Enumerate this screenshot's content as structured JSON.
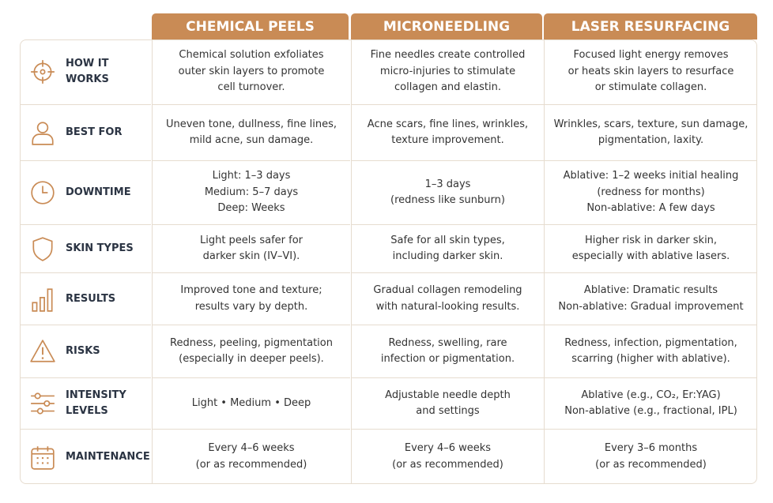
{
  "table": {
    "columns": [
      "CHEMICAL PEELS",
      "MICRONEEDLING",
      "LASER RESURFACING"
    ],
    "rows": [
      {
        "label": "HOW IT WORKS",
        "cells": [
          "Chemical solution exfoliates\nouter skin layers to promote\ncell turnover.",
          "Fine needles create controlled\nmicro-injuries to stimulate\ncollagen and elastin.",
          "Focused light energy removes\nor heats skin layers to resurface\nor stimulate collagen."
        ]
      },
      {
        "label": "BEST FOR",
        "cells": [
          "Uneven tone, dullness, fine lines,\nmild acne, sun damage.",
          "Acne scars, fine lines, wrinkles,\ntexture improvement.",
          "Wrinkles, scars, texture, sun damage,\npigmentation, laxity."
        ]
      },
      {
        "label": "DOWNTIME",
        "cells": [
          "Light: 1–3 days\nMedium: 5–7 days\nDeep: Weeks",
          "1–3 days\n(redness like sunburn)",
          "Ablative: 1–2 weeks initial healing\n(redness for months)\nNon-ablative: A few days"
        ]
      },
      {
        "label": "SKIN TYPES",
        "cells": [
          "Light peels safer for\ndarker skin (IV–VI).",
          "Safe for all skin types,\nincluding darker skin.",
          "Higher risk in darker skin,\nespecially with ablative lasers."
        ]
      },
      {
        "label": "RESULTS",
        "cells": [
          "Improved tone and texture;\nresults vary by depth.",
          "Gradual collagen remodeling\nwith natural-looking results.",
          "Ablative: Dramatic results\nNon-ablative: Gradual improvement"
        ]
      },
      {
        "label": "RISKS",
        "cells": [
          "Redness, peeling, pigmentation\n(especially in deeper peels).",
          "Redness, swelling, rare\ninfection or pigmentation.",
          "Redness, infection, pigmentation,\nscarring (higher with ablative)."
        ]
      },
      {
        "label": "INTENSITY\nLEVELS",
        "cells": [
          "Light • Medium • Deep",
          "Adjustable needle depth\nand settings",
          "Ablative (e.g., CO₂, Er:YAG)\nNon-ablative (e.g., fractional, IPL)"
        ]
      },
      {
        "label": "MAINTENANCE",
        "cells": [
          "Every 4–6 weeks\n(or as recommended)",
          "Every 4–6 weeks\n(or as recommended)",
          "Every 3–6 months\n(or as recommended)"
        ]
      }
    ]
  }
}
